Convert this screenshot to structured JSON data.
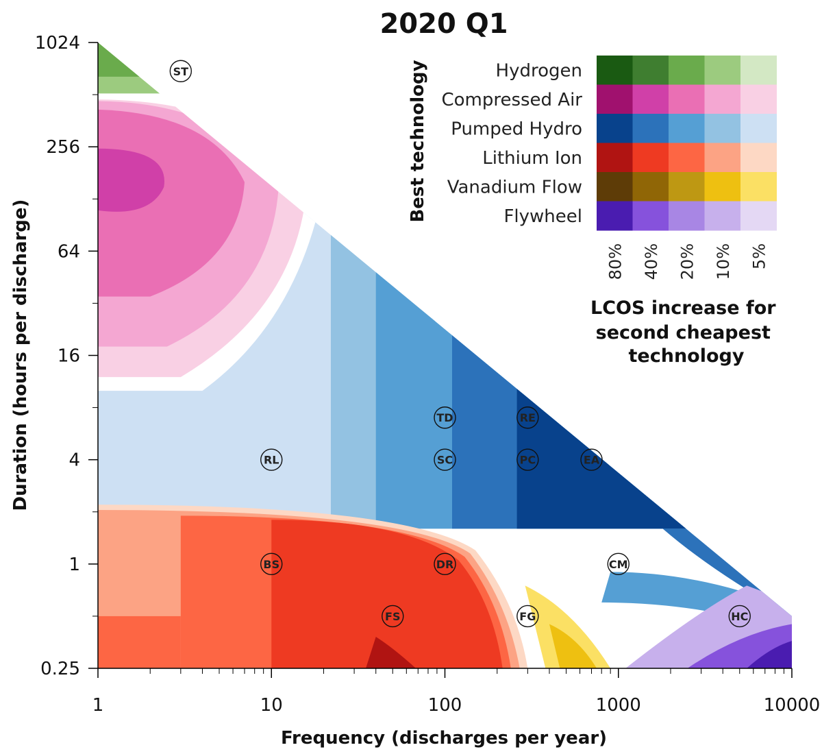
{
  "chart_data": {
    "type": "heatmap",
    "title": "2020 Q1",
    "xlabel": "Frequency (discharges per year)",
    "ylabel": "Duration (hours per discharge)",
    "xscale": "log",
    "yscale": "log",
    "xlim": [
      1,
      10000
    ],
    "ylim": [
      0.25,
      1024
    ],
    "x_ticks": [
      {
        "value": 1,
        "label": "1"
      },
      {
        "value": 10,
        "label": "10"
      },
      {
        "value": 100,
        "label": "100"
      },
      {
        "value": 1000,
        "label": "1000"
      },
      {
        "value": 10000,
        "label": "10000"
      }
    ],
    "y_ticks": [
      {
        "value": 0.25,
        "label": "0.25"
      },
      {
        "value": 1,
        "label": "1"
      },
      {
        "value": 4,
        "label": "4"
      },
      {
        "value": 16,
        "label": "16"
      },
      {
        "value": 64,
        "label": "64"
      },
      {
        "value": 256,
        "label": "256"
      },
      {
        "value": 1024,
        "label": "1024"
      }
    ],
    "technologies": [
      {
        "name": "Hydrogen",
        "colors": [
          "#1a5a12",
          "#3f7e30",
          "#6aab4c",
          "#9ccb7f",
          "#d3e8c4"
        ]
      },
      {
        "name": "Compressed Air",
        "colors": [
          "#a0116e",
          "#d040a8",
          "#ea6fb4",
          "#f4a7d2",
          "#f9d0e4"
        ]
      },
      {
        "name": "Pumped Hydro",
        "colors": [
          "#08428c",
          "#2c72ba",
          "#559fd4",
          "#93c2e2",
          "#cde0f3"
        ]
      },
      {
        "name": "Lithium Ion",
        "colors": [
          "#b01412",
          "#ee3a22",
          "#fd6644",
          "#fca384",
          "#fdd8c4"
        ]
      },
      {
        "name": "Vanadium Flow",
        "colors": [
          "#5e3c07",
          "#906606",
          "#be9813",
          "#eec011",
          "#fbe064"
        ]
      },
      {
        "name": "Flywheel",
        "colors": [
          "#4a1cb0",
          "#8652dc",
          "#a886e4",
          "#c7b0ec",
          "#e4d8f4"
        ]
      }
    ],
    "lcos_increase_levels": [
      "80%",
      "40%",
      "20%",
      "10%",
      "5%"
    ],
    "legend_title": "Best technology",
    "lcos_note": [
      "LCOS increase for",
      "second cheapest",
      "technology"
    ],
    "applications": [
      {
        "code": "ST",
        "frequency": 3,
        "duration": 700
      },
      {
        "code": "TD",
        "frequency": 100,
        "duration": 7
      },
      {
        "code": "RE",
        "frequency": 300,
        "duration": 7
      },
      {
        "code": "RL",
        "frequency": 10,
        "duration": 4
      },
      {
        "code": "SC",
        "frequency": 100,
        "duration": 4
      },
      {
        "code": "PC",
        "frequency": 300,
        "duration": 4
      },
      {
        "code": "EA",
        "frequency": 700,
        "duration": 4
      },
      {
        "code": "BS",
        "frequency": 10,
        "duration": 1
      },
      {
        "code": "DR",
        "frequency": 100,
        "duration": 1
      },
      {
        "code": "CM",
        "frequency": 1000,
        "duration": 1
      },
      {
        "code": "FS",
        "frequency": 50,
        "duration": 0.5
      },
      {
        "code": "FG",
        "frequency": 300,
        "duration": 0.5
      },
      {
        "code": "HC",
        "frequency": 5000,
        "duration": 0.5
      }
    ],
    "feasible_boundary": [
      {
        "frequency": 1,
        "duration": 1024
      },
      {
        "frequency": 10000,
        "duration": 0.5
      }
    ]
  }
}
